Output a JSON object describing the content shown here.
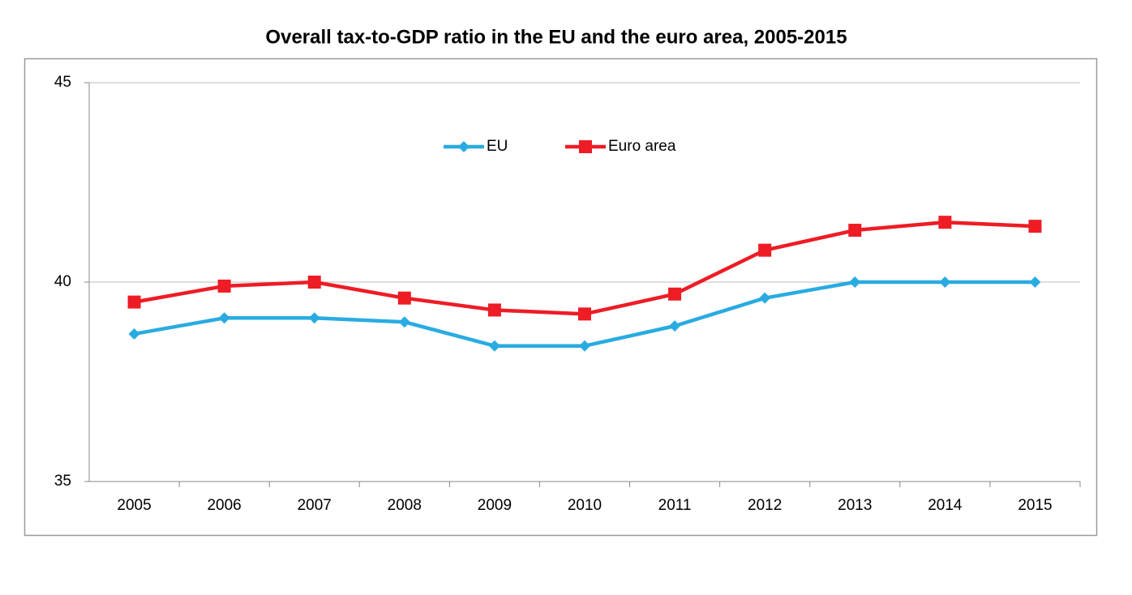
{
  "chart_data": {
    "type": "line",
    "title": "Overall tax-to-GDP ratio in the EU and the euro area, 2005-2015",
    "categories": [
      "2005",
      "2006",
      "2007",
      "2008",
      "2009",
      "2010",
      "2011",
      "2012",
      "2013",
      "2014",
      "2015"
    ],
    "series": [
      {
        "name": "EU",
        "color": "#29abe2",
        "marker": "diamond",
        "values": [
          38.7,
          39.1,
          39.1,
          39.0,
          38.4,
          38.4,
          38.9,
          39.6,
          40.0,
          40.0,
          40.0
        ]
      },
      {
        "name": "Euro area",
        "color": "#ee1c25",
        "marker": "square",
        "values": [
          39.5,
          39.9,
          40.0,
          39.6,
          39.3,
          39.2,
          39.7,
          40.8,
          41.3,
          41.5,
          41.4
        ]
      }
    ],
    "ylim": [
      35,
      45
    ],
    "yticks": [
      35,
      40,
      45
    ],
    "grid": true,
    "legend": "top"
  }
}
